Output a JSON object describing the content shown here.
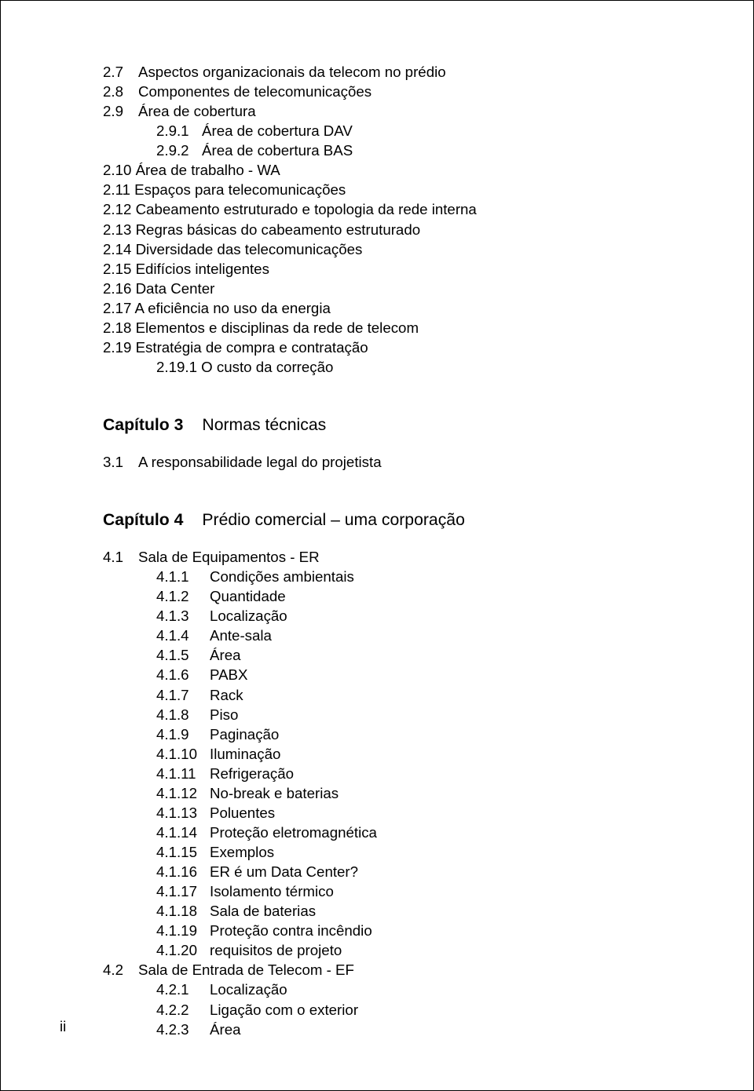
{
  "sec2": [
    {
      "n": "2.7",
      "t": "Aspectos organizacionais da telecom no prédio",
      "lvl": "lvl1"
    },
    {
      "n": "2.8",
      "t": "Componentes de telecomunicações",
      "lvl": "lvl1"
    },
    {
      "n": "2.9",
      "t": "Área de cobertura",
      "lvl": "lvl1"
    },
    {
      "n": "2.9.1",
      "t": "Área de cobertura DAV",
      "lvl": "lvl2"
    },
    {
      "n": "2.9.2",
      "t": "Área de cobertura BAS",
      "lvl": "lvl2"
    },
    {
      "n": "2.10",
      "t": " Área de trabalho - WA",
      "lvl": "lvl1-flat"
    },
    {
      "n": "2.11",
      "t": " Espaços para telecomunicações",
      "lvl": "lvl1-flat"
    },
    {
      "n": "2.12",
      "t": " Cabeamento estruturado e topologia da rede interna",
      "lvl": "lvl1-flat"
    },
    {
      "n": "2.13",
      "t": " Regras básicas do cabeamento estruturado",
      "lvl": "lvl1-flat"
    },
    {
      "n": "2.14",
      "t": " Diversidade das telecomunicações",
      "lvl": "lvl1-flat"
    },
    {
      "n": "2.15",
      "t": " Edifícios inteligentes",
      "lvl": "lvl1-flat"
    },
    {
      "n": "2.16",
      "t": " Data Center",
      "lvl": "lvl1-flat"
    },
    {
      "n": "2.17",
      "t": " A eficiência no uso da energia",
      "lvl": "lvl1-flat"
    },
    {
      "n": "2.18",
      "t": " Elementos e disciplinas da rede de telecom",
      "lvl": "lvl1-flat"
    },
    {
      "n": "2.19",
      "t": " Estratégia de compra e contratação",
      "lvl": "lvl1-flat"
    },
    {
      "n": "2.19.1",
      "t": " O custo da correção",
      "lvl": "sub"
    }
  ],
  "ch3": {
    "label": "Capítulo 3",
    "title": "Normas técnicas"
  },
  "sec3": [
    {
      "n": "3.1",
      "t": "A responsabilidade legal do projetista",
      "lvl": "lvl1"
    }
  ],
  "ch4": {
    "label": "Capítulo 4",
    "title": "Prédio comercial – uma corporação"
  },
  "sec4": [
    {
      "n": "4.1",
      "t": "Sala de Equipamentos - ER",
      "lvl": "lvl1"
    },
    {
      "n": "4.1.1",
      "t": "Condições ambientais",
      "lvl": "lvl2b"
    },
    {
      "n": "4.1.2",
      "t": "Quantidade",
      "lvl": "lvl2b"
    },
    {
      "n": "4.1.3",
      "t": "Localização",
      "lvl": "lvl2b"
    },
    {
      "n": "4.1.4",
      "t": "Ante-sala",
      "lvl": "lvl2b"
    },
    {
      "n": "4.1.5",
      "t": "Área",
      "lvl": "lvl2b"
    },
    {
      "n": "4.1.6",
      "t": "PABX",
      "lvl": "lvl2b"
    },
    {
      "n": "4.1.7",
      "t": "Rack",
      "lvl": "lvl2b"
    },
    {
      "n": "4.1.8",
      "t": "Piso",
      "lvl": "lvl2b"
    },
    {
      "n": "4.1.9",
      "t": "Paginação",
      "lvl": "lvl2b"
    },
    {
      "n": "4.1.10",
      "t": "Iluminação",
      "lvl": "lvl2c"
    },
    {
      "n": "4.1.11",
      "t": "Refrigeração",
      "lvl": "lvl2c"
    },
    {
      "n": "4.1.12",
      "t": "No-break e baterias",
      "lvl": "lvl2c"
    },
    {
      "n": "4.1.13",
      "t": "Poluentes",
      "lvl": "lvl2c"
    },
    {
      "n": "4.1.14",
      "t": "Proteção eletromagnética",
      "lvl": "lvl2c"
    },
    {
      "n": "4.1.15",
      "t": "Exemplos",
      "lvl": "lvl2c"
    },
    {
      "n": "4.1.16",
      "t": "ER é um Data Center?",
      "lvl": "lvl2c"
    },
    {
      "n": "4.1.17",
      "t": "Isolamento térmico",
      "lvl": "lvl2c"
    },
    {
      "n": "4.1.18",
      "t": "Sala de baterias",
      "lvl": "lvl2c"
    },
    {
      "n": "4.1.19",
      "t": "Proteção contra incêndio",
      "lvl": "lvl2c"
    },
    {
      "n": "4.1.20",
      "t": "requisitos de projeto",
      "lvl": "lvl2c"
    },
    {
      "n": "4.2",
      "t": "Sala de Entrada de Telecom - EF",
      "lvl": "lvl1"
    },
    {
      "n": "4.2.1",
      "t": "Localização",
      "lvl": "lvl2b"
    },
    {
      "n": "4.2.2",
      "t": "Ligação com o exterior",
      "lvl": "lvl2b"
    },
    {
      "n": "4.2.3",
      "t": "Área",
      "lvl": "lvl2b"
    }
  ],
  "pageNum": "ii"
}
